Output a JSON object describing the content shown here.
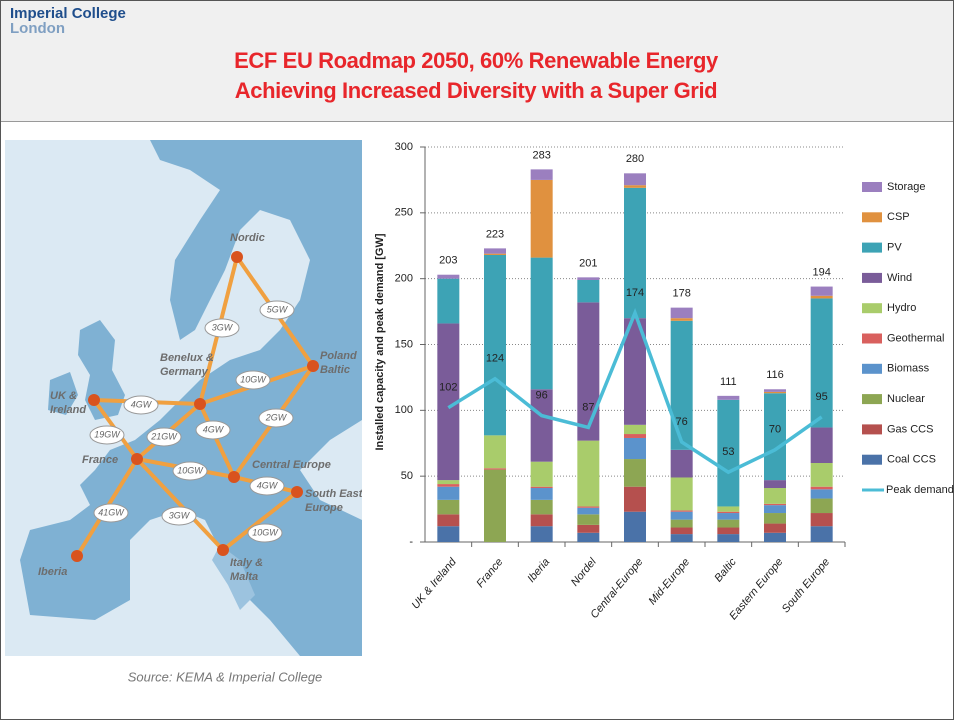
{
  "header": {
    "logo": [
      "Imperial College",
      "London"
    ],
    "title": [
      "ECF EU Roadmap 2050, 60% Renewable Energy",
      "Achieving Increased Diversity with a Super Grid"
    ]
  },
  "map": {
    "nodes": [
      {
        "label": [
          "Nordic"
        ]
      },
      {
        "label": [
          "Poland",
          "Baltic"
        ]
      },
      {
        "label": [
          "Benelux &",
          "Germany"
        ]
      },
      {
        "label": [
          "UK &",
          "Ireland"
        ]
      },
      {
        "label": [
          "France"
        ]
      },
      {
        "label": [
          "Central Europe"
        ]
      },
      {
        "label": [
          "South East",
          "Europe"
        ]
      },
      {
        "label": [
          "Italy &",
          "Malta"
        ]
      },
      {
        "label": [
          "Iberia"
        ]
      }
    ],
    "links": [
      {
        "label": "5GW",
        "from": 0,
        "to": 1
      },
      {
        "label": "3GW",
        "from": 0,
        "to": 2
      },
      {
        "label": "10GW",
        "from": 2,
        "to": 1
      },
      {
        "label": "4GW",
        "from": 3,
        "to": 2
      },
      {
        "label": "19GW",
        "from": 3,
        "to": 4
      },
      {
        "label": "21GW",
        "from": 4,
        "to": 2
      },
      {
        "label": "4GW",
        "from": 2,
        "to": 5
      },
      {
        "label": "2GW",
        "from": 5,
        "to": 1
      },
      {
        "label": "10GW",
        "from": 4,
        "to": 5
      },
      {
        "label": "4GW",
        "from": 5,
        "to": 6
      },
      {
        "label": "41GW",
        "from": 4,
        "to": 8
      },
      {
        "label": "3GW",
        "from": 4,
        "to": 7
      },
      {
        "label": "10GW",
        "from": 7,
        "to": 6
      }
    ]
  },
  "source": "Source: KEMA & Imperial College",
  "chart_data": {
    "type": "bar",
    "stacked": true,
    "ylabel": "Installed capacity and peak demand [GW]",
    "categories": [
      "UK & Ireland",
      "France",
      "Iberia",
      "Nordel",
      "Central-Europe",
      "Mid-Europe",
      "Baltic",
      "Eastern Europe",
      "South Europe"
    ],
    "series": [
      {
        "name": "Coal CCS",
        "color": "#4a72a8",
        "values": [
          12,
          0,
          12,
          7,
          23,
          6,
          6,
          7,
          12
        ]
      },
      {
        "name": "Gas CCS",
        "color": "#b5504e",
        "values": [
          9,
          0,
          9,
          6,
          19,
          5,
          5,
          7,
          10
        ]
      },
      {
        "name": "Nuclear",
        "color": "#8da653",
        "values": [
          11,
          55,
          11,
          8,
          21,
          6,
          6,
          8,
          11
        ]
      },
      {
        "name": "Biomass",
        "color": "#5b93cc",
        "values": [
          10,
          0,
          9,
          5,
          16,
          6,
          5,
          6,
          7
        ]
      },
      {
        "name": "Geothermal",
        "color": "#d9605e",
        "values": [
          2,
          1,
          1,
          1,
          3,
          1,
          1,
          1,
          2
        ]
      },
      {
        "name": "Hydro",
        "color": "#a9cc6b",
        "values": [
          3,
          25,
          19,
          50,
          7,
          25,
          4,
          12,
          18
        ]
      },
      {
        "name": "Wind",
        "color": "#7a5c99",
        "values": [
          119,
          0,
          55,
          105,
          81,
          21,
          0,
          6,
          27
        ]
      },
      {
        "name": "PV",
        "color": "#3da3b5",
        "values": [
          34,
          137,
          100,
          17,
          99,
          98,
          81,
          66,
          98
        ]
      },
      {
        "name": "CSP",
        "color": "#e0913f",
        "values": [
          0,
          1,
          59,
          0,
          2,
          2,
          0,
          1,
          2
        ]
      },
      {
        "name": "Storage",
        "color": "#9b7fbf",
        "values": [
          3,
          4,
          8,
          2,
          9,
          8,
          3,
          2,
          7
        ]
      },
      {
        "name": "Peak demand",
        "type": "line",
        "color": "#4bbcd6",
        "values": [
          102,
          124,
          96,
          87,
          174,
          76,
          53,
          70,
          95
        ]
      }
    ],
    "totals": [
      203,
      223,
      283,
      201,
      280,
      178,
      111,
      116,
      194
    ],
    "ylim": [
      0,
      300
    ],
    "yticks": [
      {
        "value": 0,
        "label": "-"
      },
      50,
      100,
      150,
      200,
      250,
      300
    ],
    "grid": true,
    "legend": "right"
  }
}
